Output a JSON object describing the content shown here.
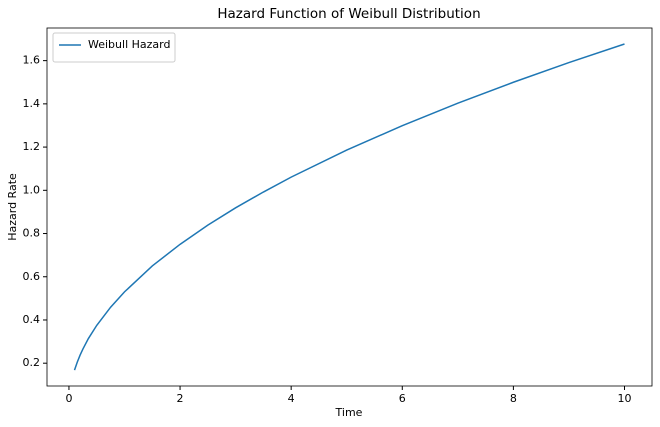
{
  "chart_data": {
    "type": "line",
    "title": "Hazard Function of Weibull Distribution",
    "x_label": "Time",
    "y_label": "Hazard Rate",
    "x": [
      0.1,
      0.15,
      0.2,
      0.25,
      0.35,
      0.5,
      0.75,
      1,
      1.5,
      2,
      2.5,
      3,
      3.5,
      4,
      5,
      6,
      7,
      8,
      9,
      10
    ],
    "series": [
      {
        "name": "Weibull Hazard",
        "color": "#1f77b4",
        "values": [
          0.168,
          0.205,
          0.237,
          0.265,
          0.314,
          0.375,
          0.459,
          0.53,
          0.65,
          0.75,
          0.839,
          0.919,
          0.992,
          1.061,
          1.186,
          1.299,
          1.403,
          1.5,
          1.591,
          1.677
        ]
      }
    ],
    "xlim": [
      -0.395,
      10.495
    ],
    "ylim": [
      0.0945,
      1.751
    ],
    "xticks": [
      0,
      2,
      4,
      6,
      8,
      10
    ],
    "yticks": [
      {
        "value": 0.2,
        "label": "0.2"
      },
      {
        "value": 0.4,
        "label": "0.4"
      },
      {
        "value": 0.6,
        "label": "0.6"
      },
      {
        "value": 0.8,
        "label": "0.8"
      },
      {
        "value": 1.0,
        "label": "1.0"
      },
      {
        "value": 1.2,
        "label": "1.2"
      },
      {
        "value": 1.4,
        "label": "1.4"
      },
      {
        "value": 1.6,
        "label": "1.6"
      }
    ],
    "legend": "upper left",
    "grid": false
  }
}
